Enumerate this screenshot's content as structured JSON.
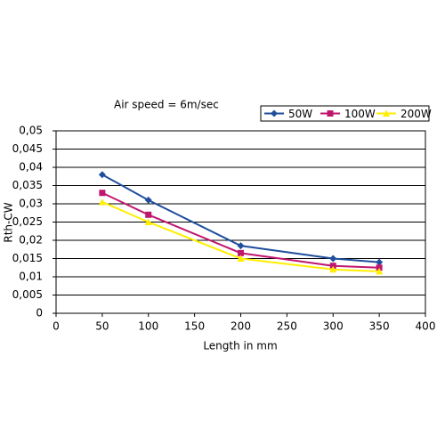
{
  "chart_data": {
    "type": "line",
    "title": "Air speed = 6m/sec",
    "x_label": "Length in mm",
    "y_label": "Rth-CW",
    "x": [
      50,
      100,
      200,
      300,
      350
    ],
    "series": [
      {
        "name": "50W",
        "color": "#1f4e9c",
        "marker": "diamond",
        "values": [
          0.038,
          0.031,
          0.0185,
          0.015,
          0.014
        ]
      },
      {
        "name": "100W",
        "color": "#c0166e",
        "marker": "square",
        "values": [
          0.033,
          0.027,
          0.0165,
          0.013,
          0.0125
        ]
      },
      {
        "name": "200W",
        "color": "#ffee00",
        "marker": "triangle",
        "values": [
          0.0305,
          0.025,
          0.015,
          0.012,
          0.0115
        ]
      }
    ],
    "xlim": [
      0,
      400
    ],
    "xticks": [
      0,
      50,
      100,
      150,
      200,
      250,
      300,
      350,
      400
    ],
    "ylim": [
      0,
      0.05
    ],
    "yticks": [
      0,
      {
        "value": 0.005,
        "label": "0,005"
      },
      {
        "value": 0.01,
        "label": "0,01"
      },
      {
        "value": 0.015,
        "label": "0,015"
      },
      {
        "value": 0.02,
        "label": "0,02"
      },
      {
        "value": 0.025,
        "label": "0,025"
      },
      {
        "value": 0.03,
        "label": "0,03"
      },
      {
        "value": 0.035,
        "label": "0,035"
      },
      {
        "value": 0.04,
        "label": "0,04"
      },
      {
        "value": 0.045,
        "label": "0,045"
      },
      {
        "value": 0.05,
        "label": "0,05"
      }
    ],
    "grid": true,
    "legend": "top-right"
  }
}
